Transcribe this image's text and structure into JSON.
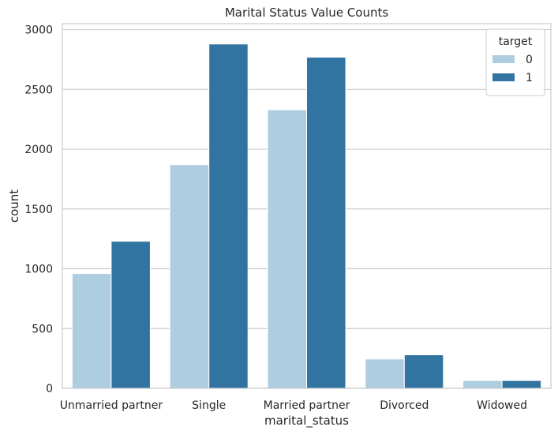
{
  "chart_data": {
    "type": "bar",
    "title": "Marital Status Value Counts",
    "xlabel": "marital_status",
    "ylabel": "count",
    "categories": [
      "Unmarried partner",
      "Single",
      "Married partner",
      "Divorced",
      "Widowed"
    ],
    "series": [
      {
        "name": "0",
        "values": [
          960,
          1870,
          2330,
          245,
          65
        ],
        "color": "#aecde1"
      },
      {
        "name": "1",
        "values": [
          1230,
          2880,
          2770,
          280,
          65
        ],
        "color": "#3274a1"
      }
    ],
    "ylim": [
      0,
      3050
    ],
    "yticks": [
      0,
      500,
      1000,
      1500,
      2000,
      2500,
      3000
    ],
    "grid": true,
    "legend": {
      "title": "target",
      "placement": "top-right"
    }
  }
}
